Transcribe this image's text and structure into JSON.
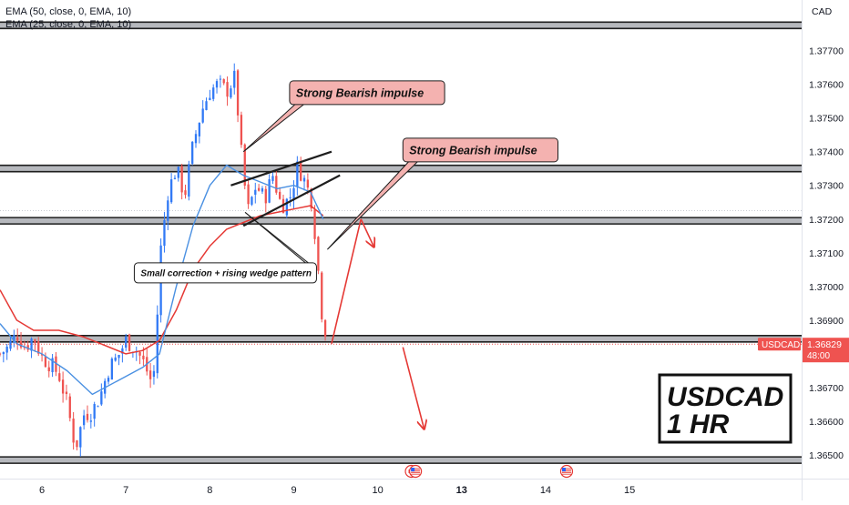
{
  "chart_data": {
    "type": "candlestick",
    "symbol": "USDCAD",
    "timeframe_label": "1 HR",
    "currency": "CAD",
    "indicators": [
      {
        "label": "EMA (50, close, 0, EMA, 10)",
        "color": "#e53935"
      },
      {
        "label": "EMA (25, close, 0, EMA, 10)",
        "color": "#4a90e2"
      }
    ],
    "price_axis": {
      "ylim": [
        1.3643,
        1.3785
      ],
      "ticks": [
        "1.37700",
        "1.37600",
        "1.37500",
        "1.37400",
        "1.37300",
        "1.37200",
        "1.37100",
        "1.37000",
        "1.36900",
        "1.36700",
        "1.36600",
        "1.36500"
      ]
    },
    "time_axis": {
      "xlim": [
        5.5,
        15.05
      ],
      "ticks": [
        {
          "t": 6,
          "label": "6"
        },
        {
          "t": 7,
          "label": "7"
        },
        {
          "t": 8,
          "label": "8"
        },
        {
          "t": 9,
          "label": "9"
        },
        {
          "t": 10,
          "label": "10"
        },
        {
          "t": 11,
          "label": "13"
        },
        {
          "t": 12,
          "label": "14"
        },
        {
          "t": 13,
          "label": "15"
        }
      ]
    },
    "current_price": {
      "value": "1.36829",
      "label": "USDCAD",
      "countdown": "48:00",
      "price": 1.36829
    },
    "levels": [
      1.37775,
      1.3735,
      1.37195,
      1.36845,
      1.36485
    ],
    "keypoints": [
      [
        5.5,
        1.368
      ],
      [
        5.6,
        1.3682
      ],
      [
        5.7,
        1.3686
      ],
      [
        5.8,
        1.3682
      ],
      [
        5.9,
        1.3685
      ],
      [
        6.0,
        1.3679
      ],
      [
        6.1,
        1.3677
      ],
      [
        6.2,
        1.3674
      ],
      [
        6.3,
        1.3665
      ],
      [
        6.4,
        1.3652
      ],
      [
        6.5,
        1.3662
      ],
      [
        6.6,
        1.3663
      ],
      [
        6.7,
        1.3668
      ],
      [
        6.8,
        1.3676
      ],
      [
        6.9,
        1.3679
      ],
      [
        7.0,
        1.3684
      ],
      [
        7.1,
        1.3682
      ],
      [
        7.2,
        1.3678
      ],
      [
        7.3,
        1.3672
      ],
      [
        7.35,
        1.3676
      ],
      [
        7.4,
        1.3708
      ],
      [
        7.5,
        1.3728
      ],
      [
        7.6,
        1.3735
      ],
      [
        7.7,
        1.3727
      ],
      [
        7.8,
        1.3742
      ],
      [
        7.9,
        1.3752
      ],
      [
        8.0,
        1.3758
      ],
      [
        8.1,
        1.376
      ],
      [
        8.2,
        1.3758
      ],
      [
        8.3,
        1.3762
      ],
      [
        8.38,
        1.3738
      ],
      [
        8.45,
        1.3722
      ],
      [
        8.55,
        1.373
      ],
      [
        8.65,
        1.3726
      ],
      [
        8.75,
        1.3733
      ],
      [
        8.85,
        1.3724
      ],
      [
        8.95,
        1.3726
      ],
      [
        9.05,
        1.3736
      ],
      [
        9.15,
        1.373
      ],
      [
        9.22,
        1.3725
      ],
      [
        9.28,
        1.3708
      ],
      [
        9.33,
        1.3693
      ],
      [
        9.4,
        1.3684
      ]
    ],
    "ema_fast": [
      [
        5.5,
        1.3689
      ],
      [
        5.7,
        1.3683
      ],
      [
        6.0,
        1.368
      ],
      [
        6.3,
        1.3675
      ],
      [
        6.6,
        1.3668
      ],
      [
        6.9,
        1.3672
      ],
      [
        7.2,
        1.3676
      ],
      [
        7.4,
        1.368
      ],
      [
        7.6,
        1.37
      ],
      [
        7.8,
        1.3718
      ],
      [
        8.0,
        1.373
      ],
      [
        8.2,
        1.3736
      ],
      [
        8.4,
        1.3733
      ],
      [
        8.6,
        1.3731
      ],
      [
        8.8,
        1.3729
      ],
      [
        9.0,
        1.373
      ],
      [
        9.2,
        1.3728
      ],
      [
        9.35,
        1.372
      ]
    ],
    "ema_slow": [
      [
        5.5,
        1.3699
      ],
      [
        5.7,
        1.369
      ],
      [
        5.9,
        1.3687
      ],
      [
        6.2,
        1.3687
      ],
      [
        6.5,
        1.3685
      ],
      [
        6.8,
        1.3682
      ],
      [
        7.0,
        1.368
      ],
      [
        7.2,
        1.3681
      ],
      [
        7.4,
        1.3684
      ],
      [
        7.6,
        1.3693
      ],
      [
        7.8,
        1.3705
      ],
      [
        8.0,
        1.3712
      ],
      [
        8.2,
        1.3717
      ],
      [
        8.4,
        1.3719
      ],
      [
        8.6,
        1.3721
      ],
      [
        8.8,
        1.3722
      ],
      [
        9.0,
        1.3723
      ],
      [
        9.2,
        1.3724
      ],
      [
        9.35,
        1.3721
      ]
    ],
    "wedge_lines": [
      {
        "from": [
          8.25,
          1.373
        ],
        "to": [
          9.45,
          1.374
        ]
      },
      {
        "from": [
          8.4,
          1.3718
        ],
        "to": [
          9.55,
          1.3733
        ]
      }
    ],
    "annotations": [
      {
        "text": "Strong Bearish impulse",
        "anchor": [
          8.4,
          1.374
        ],
        "box": [
          8.95,
          1.3761
        ]
      },
      {
        "text": "Strong Bearish impulse",
        "anchor": [
          9.4,
          1.3711
        ],
        "box": [
          10.3,
          1.3744
        ]
      },
      {
        "text": "Small correction + rising wedge pattern",
        "anchor": [
          8.42,
          1.3722
        ],
        "box": [
          7.1,
          1.3707
        ]
      }
    ],
    "projection_arrows": [
      {
        "from": [
          9.45,
          1.3683
        ],
        "to": [
          9.8,
          1.372
        ]
      },
      {
        "from": [
          9.8,
          1.372
        ],
        "to": [
          9.95,
          1.3712
        ]
      },
      {
        "from": [
          10.3,
          1.3682
        ],
        "to": [
          10.55,
          1.3658
        ]
      }
    ],
    "event_markers": [
      {
        "t": 10.4,
        "kind": "flag-ca"
      },
      {
        "t": 10.45,
        "kind": "flag-us"
      },
      {
        "t": 12.25,
        "kind": "flag-us"
      }
    ]
  },
  "overlay": {
    "title_line1": "USDCAD",
    "title_line2": "1 HR"
  }
}
